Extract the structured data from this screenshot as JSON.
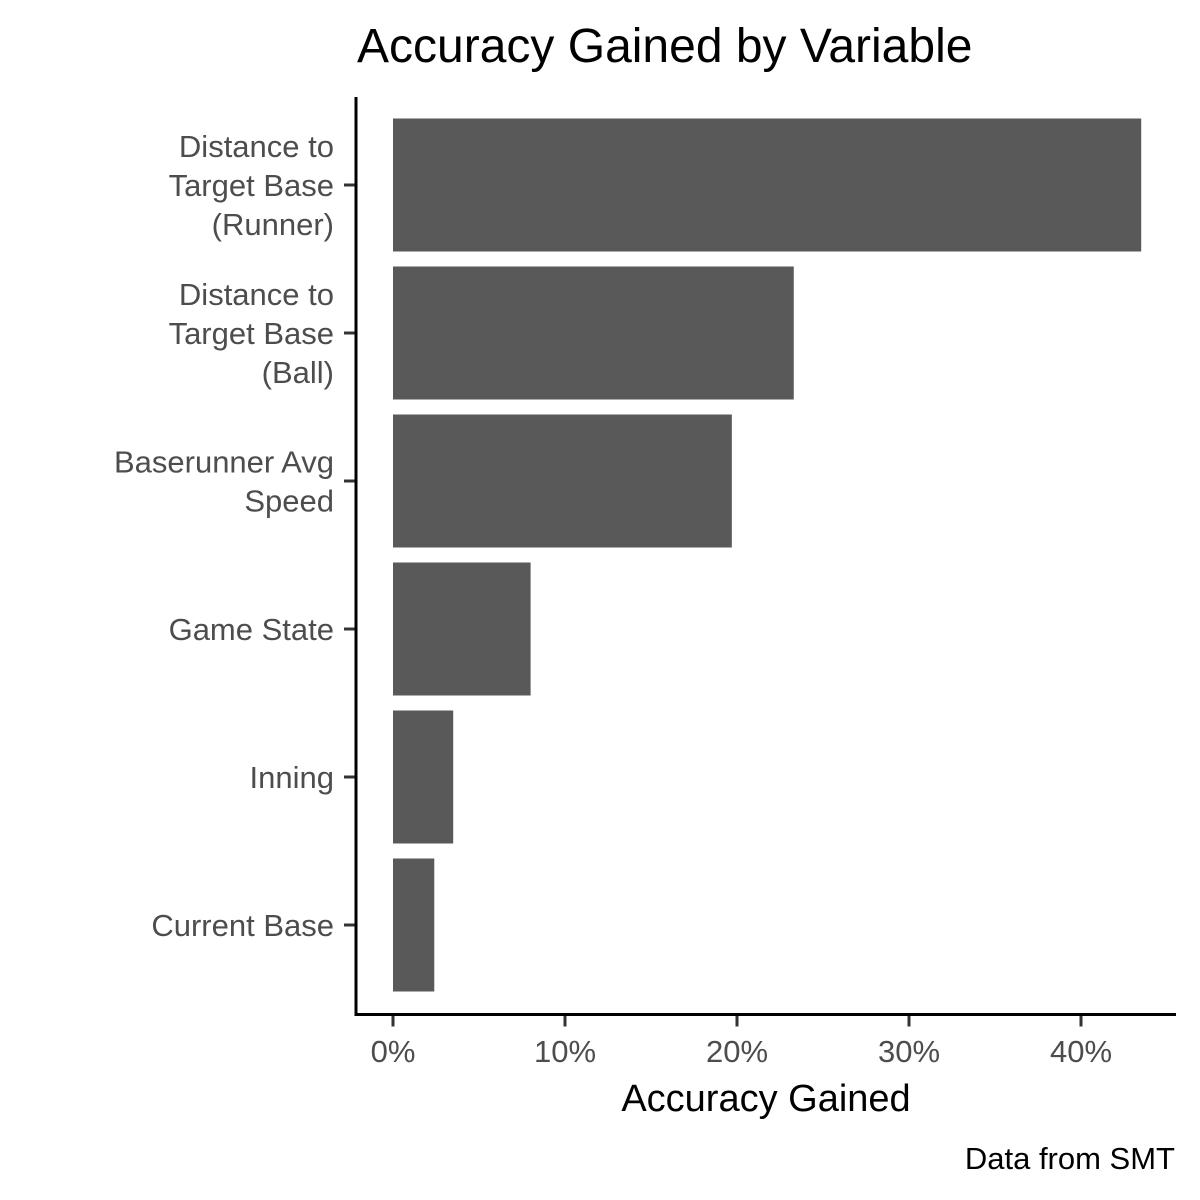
{
  "chart_data": {
    "type": "bar",
    "orientation": "horizontal",
    "title": "Accuracy Gained by Variable",
    "xlabel": "Accuracy Gained",
    "ylabel": "",
    "caption": "Data from SMT",
    "categories": [
      [
        "Distance to",
        "Target Base",
        "(Runner)"
      ],
      [
        "Distance to",
        "Target Base",
        "(Ball)"
      ],
      [
        "Baserunner Avg",
        "Speed"
      ],
      [
        "Game State"
      ],
      [
        "Inning"
      ],
      [
        "Current Base"
      ]
    ],
    "values": [
      43.5,
      23.3,
      19.7,
      8.0,
      3.5,
      2.4
    ],
    "xlim": [
      0,
      45
    ],
    "x_ticks": [
      0,
      10,
      20,
      30,
      40
    ],
    "x_tick_labels": [
      "0%",
      "10%",
      "20%",
      "30%",
      "40%"
    ],
    "bar_color": "#595959",
    "grid": false,
    "legend": "none"
  }
}
